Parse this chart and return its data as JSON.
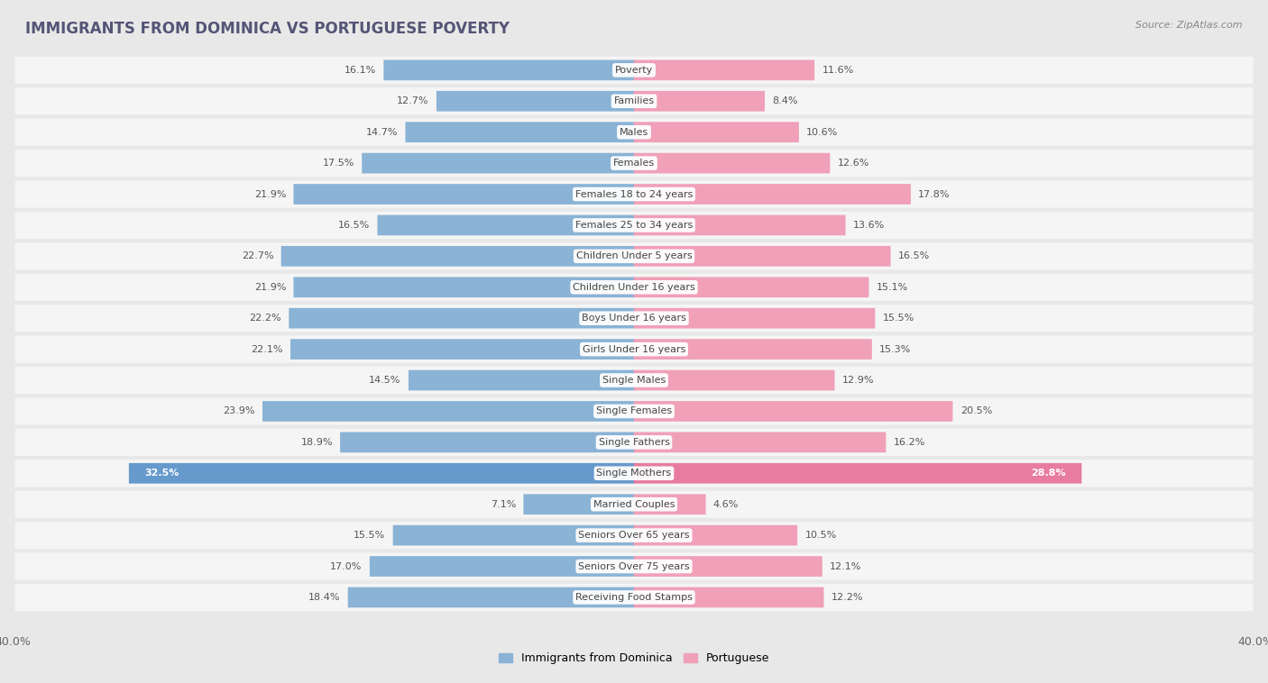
{
  "title": "IMMIGRANTS FROM DOMINICA VS PORTUGUESE POVERTY",
  "source": "Source: ZipAtlas.com",
  "categories": [
    "Poverty",
    "Families",
    "Males",
    "Females",
    "Females 18 to 24 years",
    "Females 25 to 34 years",
    "Children Under 5 years",
    "Children Under 16 years",
    "Boys Under 16 years",
    "Girls Under 16 years",
    "Single Males",
    "Single Females",
    "Single Fathers",
    "Single Mothers",
    "Married Couples",
    "Seniors Over 65 years",
    "Seniors Over 75 years",
    "Receiving Food Stamps"
  ],
  "left_values": [
    16.1,
    12.7,
    14.7,
    17.5,
    21.9,
    16.5,
    22.7,
    21.9,
    22.2,
    22.1,
    14.5,
    23.9,
    18.9,
    32.5,
    7.1,
    15.5,
    17.0,
    18.4
  ],
  "right_values": [
    11.6,
    8.4,
    10.6,
    12.6,
    17.8,
    13.6,
    16.5,
    15.1,
    15.5,
    15.3,
    12.9,
    20.5,
    16.2,
    28.8,
    4.6,
    10.5,
    12.1,
    12.2
  ],
  "left_color": "#8ab3d5",
  "right_color": "#f0a0b8",
  "left_label": "Immigrants from Dominica",
  "right_label": "Portuguese",
  "x_max": 40.0,
  "bg_color": "#e8e8e8",
  "row_bg_color": "#f5f5f5",
  "bar_bg_color": "#ffffff",
  "highlight_rows": [
    13
  ],
  "highlight_left_color": "#6699cc",
  "highlight_right_color": "#e87ba0",
  "highlight_left_text": "#4477aa",
  "highlight_right_text": "#cc5577"
}
